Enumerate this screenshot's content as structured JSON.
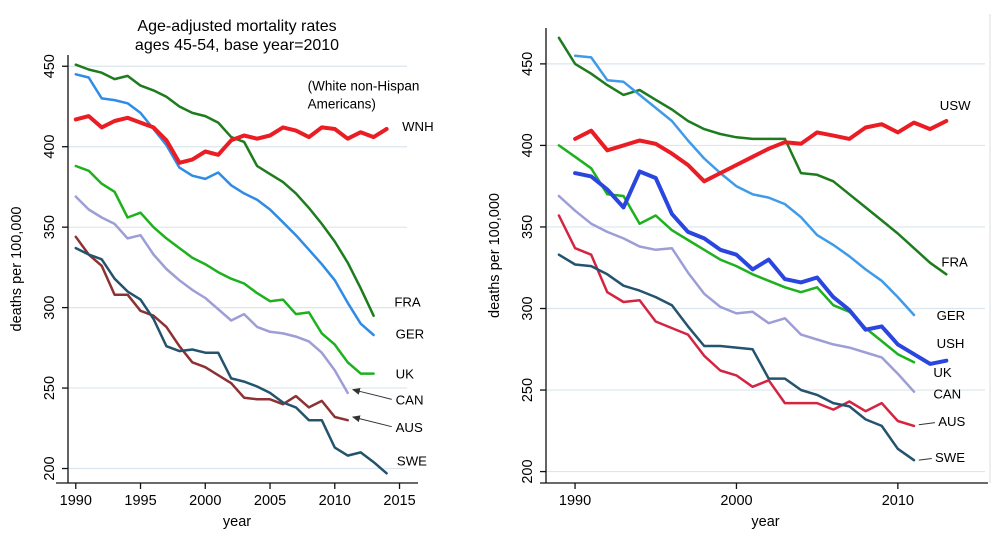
{
  "figure_title": "Age-adjusted mortality rates, ages 45-54, base year=2010",
  "colors": {
    "us_red": "#ea1c24",
    "fra_green": "#1e7b1e",
    "ger_blue_left": "#2e8ce6",
    "ger_blue_right": "#3f9be8",
    "uk_green": "#1db11d",
    "can_lavender": "#9e9ed6",
    "aus_maroon_left": "#8e3134",
    "aus_crimson_right": "#d42442",
    "swe_navy": "#24536e",
    "ush_blue": "#2a46de",
    "grid": "#dbe6ee",
    "axis": "#111111",
    "arrow": "#333333"
  },
  "chart_data": [
    {
      "name": "left-chart",
      "type": "line",
      "title_lines": [
        "Age-adjusted mortality rates",
        "ages 45-54, base year=2010"
      ],
      "xlabel": "year",
      "ylabel": "deaths per 100,000",
      "x_ticks": [
        1990,
        1995,
        2000,
        2005,
        2010,
        2015
      ],
      "y_ticks": [
        200,
        250,
        300,
        350,
        400,
        450
      ],
      "x_domain": [
        1989.4,
        2015.5
      ],
      "y_domain": [
        191,
        457
      ],
      "grid": true,
      "annotation": {
        "lines": [
          "(White non-Hispan",
          "Americans)"
        ],
        "at": [
          2007.9,
          435
        ]
      },
      "series": [
        {
          "name": "FRA",
          "label": "FRA",
          "color": "fra_green",
          "width": 2.5,
          "start_year": 1990,
          "values": [
            451,
            448,
            446,
            442,
            444,
            438,
            435,
            431,
            425,
            421,
            419,
            415,
            406,
            403,
            388,
            383,
            378,
            371,
            362,
            352,
            341,
            328,
            312,
            295
          ],
          "label_at": [
            2014.6,
            303
          ]
        },
        {
          "name": "GER",
          "label": "GER",
          "color": "ger_blue_left",
          "width": 2.5,
          "start_year": 1990,
          "values": [
            445,
            443,
            430,
            429,
            427,
            421,
            411,
            401,
            387,
            382,
            380,
            384,
            376,
            371,
            367,
            361,
            353,
            345,
            336,
            327,
            317,
            303,
            290,
            283
          ],
          "label_at": [
            2014.7,
            283
          ]
        },
        {
          "name": "UK",
          "label": "UK",
          "color": "uk_green",
          "width": 2.5,
          "start_year": 1990,
          "values": [
            388,
            385,
            377,
            372,
            356,
            359,
            350,
            343,
            337,
            331,
            327,
            322,
            318,
            315,
            309,
            304,
            305,
            296,
            297,
            284,
            277,
            266,
            259,
            259
          ],
          "label_at": [
            2014.7,
            258
          ]
        },
        {
          "name": "CAN",
          "label": "CAN",
          "color": "can_lavender",
          "width": 2.5,
          "start_year": 1990,
          "values": [
            369,
            361,
            356,
            352,
            343,
            345,
            333,
            324,
            317,
            311,
            306,
            299,
            292,
            296,
            288,
            285,
            284,
            282,
            279,
            272,
            261,
            247
          ],
          "label_at": [
            2014.7,
            242
          ],
          "arrow": {
            "from": [
              2014.4,
              243
            ],
            "to": [
              2011.4,
              249
            ]
          }
        },
        {
          "name": "AUS",
          "label": "AUS",
          "color": "aus_maroon_left",
          "width": 2.5,
          "start_year": 1990,
          "values": [
            344,
            333,
            326,
            308,
            308,
            298,
            295,
            288,
            276,
            266,
            263,
            258,
            253,
            244,
            243,
            243,
            240,
            245,
            238,
            242,
            232,
            230
          ],
          "label_at": [
            2014.7,
            225
          ],
          "arrow": {
            "from": [
              2014.4,
              226
            ],
            "to": [
              2011.4,
              232
            ]
          }
        },
        {
          "name": "SWE",
          "label": "SWE",
          "color": "swe_navy",
          "width": 2.5,
          "start_year": 1990,
          "values": [
            337,
            333,
            330,
            318,
            310,
            305,
            293,
            276,
            273,
            274,
            272,
            272,
            256,
            254,
            251,
            247,
            241,
            238,
            230,
            230,
            213,
            208,
            210,
            204,
            197
          ],
          "label_at": [
            2014.8,
            204
          ]
        },
        {
          "name": "WNH",
          "label": "WNH",
          "color": "us_red",
          "width": 4,
          "start_year": 1990,
          "values": [
            417,
            419,
            412,
            416,
            418,
            415,
            412,
            404,
            390,
            392,
            397,
            395,
            404,
            407,
            405,
            407,
            412,
            410,
            406,
            412,
            411,
            405,
            409,
            406,
            411
          ],
          "label_at": [
            2015.2,
            412
          ]
        }
      ]
    },
    {
      "name": "right-chart",
      "type": "line",
      "title_lines": [],
      "xlabel": "year",
      "ylabel": "deaths per 100,000",
      "x_ticks": [
        1990,
        2000,
        2010
      ],
      "y_ticks": [
        200,
        250,
        300,
        350,
        400,
        450
      ],
      "x_domain": [
        1988.2,
        2015.4
      ],
      "y_domain": [
        193,
        472
      ],
      "grid": true,
      "series": [
        {
          "name": "FRA",
          "label": "FRA",
          "color": "fra_green",
          "width": 2.5,
          "start_year": 1989,
          "values": [
            466,
            450,
            444,
            437,
            431,
            434,
            428,
            422,
            415,
            410,
            407,
            405,
            404,
            404,
            404,
            383,
            382,
            378,
            370,
            362,
            354,
            346,
            337,
            328,
            321
          ],
          "label_at": [
            2012.7,
            328
          ]
        },
        {
          "name": "GER",
          "label": "GER",
          "color": "ger_blue_right",
          "width": 2.5,
          "start_year": 1990,
          "values": [
            455,
            454,
            440,
            439,
            431,
            423,
            415,
            403,
            392,
            383,
            375,
            370,
            368,
            364,
            356,
            345,
            339,
            332,
            324,
            317,
            307,
            296
          ],
          "label_at": [
            2012.4,
            295
          ]
        },
        {
          "name": "CAN",
          "label": "CAN",
          "color": "can_lavender",
          "width": 2.5,
          "start_year": 1989,
          "values": [
            369,
            360,
            352,
            347,
            343,
            338,
            336,
            337,
            322,
            309,
            301,
            297,
            298,
            291,
            294,
            284,
            281,
            278,
            276,
            273,
            270,
            260,
            249
          ],
          "label_at": [
            2012.2,
            247
          ]
        },
        {
          "name": "AUS",
          "label": "AUS",
          "color": "aus_crimson_right",
          "width": 2.5,
          "start_year": 1989,
          "values": [
            357,
            337,
            333,
            310,
            304,
            305,
            292,
            288,
            284,
            271,
            262,
            259,
            252,
            256,
            242,
            242,
            242,
            238,
            243,
            237,
            242,
            231,
            228
          ],
          "label_at": [
            2012.5,
            230
          ],
          "leader": {
            "from": [
              2011.3,
              228.7
            ],
            "to": [
              2012.3,
              230
            ]
          }
        },
        {
          "name": "SWE",
          "label": "SWE",
          "color": "swe_navy",
          "width": 2.5,
          "start_year": 1989,
          "values": [
            333,
            327,
            326,
            321,
            314,
            311,
            307,
            302,
            289,
            277,
            277,
            276,
            275,
            257,
            257,
            250,
            247,
            242,
            240,
            232,
            228,
            214,
            207
          ],
          "label_at": [
            2012.3,
            208
          ],
          "leader": {
            "from": [
              2011.3,
              207
            ],
            "to": [
              2012.1,
              208
            ]
          }
        },
        {
          "name": "UK",
          "label": "UK",
          "color": "uk_green",
          "width": 2.5,
          "start_year": 1989,
          "values": [
            400,
            393,
            386,
            370,
            369,
            352,
            357,
            348,
            342,
            336,
            330,
            326,
            321,
            317,
            313,
            310,
            313,
            302,
            298,
            288,
            280,
            272,
            267
          ],
          "label_at": [
            2012.2,
            260
          ]
        },
        {
          "name": "USH",
          "label": "USH",
          "color": "ush_blue",
          "width": 4,
          "start_year": 1990,
          "values": [
            383,
            381,
            373,
            362,
            384,
            380,
            358,
            347,
            343,
            336,
            333,
            324,
            330,
            318,
            316,
            319,
            307,
            299,
            287,
            289,
            278,
            272,
            266,
            268
          ],
          "label_at": [
            2012.4,
            278
          ]
        },
        {
          "name": "USW",
          "label": "USW",
          "color": "us_red",
          "width": 4,
          "start_year": 1990,
          "values": [
            404,
            409,
            397,
            400,
            403,
            401,
            395,
            388,
            378,
            383,
            388,
            393,
            398,
            402,
            401,
            408,
            406,
            404,
            411,
            413,
            408,
            414,
            410,
            415
          ],
          "label_at": [
            2012.6,
            424
          ]
        }
      ]
    }
  ]
}
